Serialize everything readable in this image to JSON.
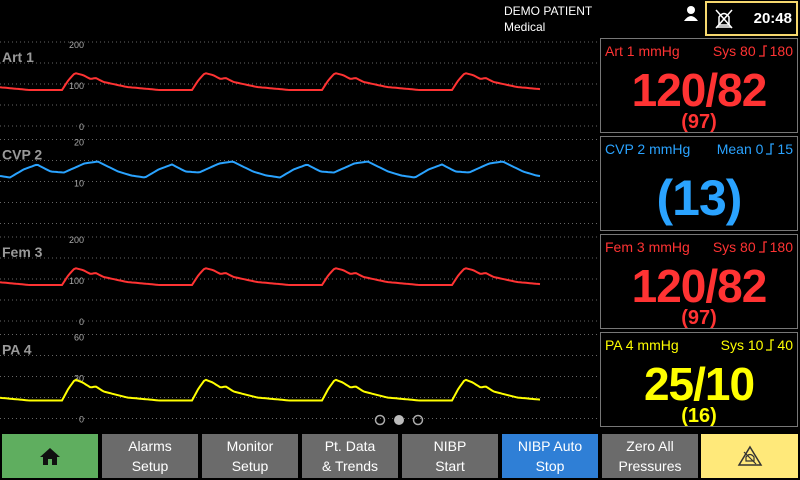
{
  "header": {
    "patient_name": "DEMO PATIENT",
    "unit": "Medical",
    "clock": "20:48"
  },
  "waveforms": [
    {
      "label": "Art 1",
      "scale": [
        "200",
        "100",
        "0"
      ],
      "color": "#ff3333"
    },
    {
      "label": "CVP 2",
      "scale": [
        "20",
        "10"
      ],
      "color": "#2aa3ff"
    },
    {
      "label": "Fem 3",
      "scale": [
        "200",
        "100",
        "0"
      ],
      "color": "#ff3333"
    },
    {
      "label": "PA 4",
      "scale": [
        "60",
        "30",
        "0"
      ],
      "color": "#ffff00"
    }
  ],
  "panels": [
    {
      "label": "Art 1 mmHg",
      "alarm_low": "Sys 80",
      "alarm_high": "180",
      "value": "120/82",
      "mean": "(97)",
      "color": "#ff3333"
    },
    {
      "label": "CVP 2 mmHg",
      "alarm_low": "Mean 0",
      "alarm_high": "15",
      "value": "(13)",
      "color": "#2aa3ff"
    },
    {
      "label": "Fem 3 mmHg",
      "alarm_low": "Sys 80",
      "alarm_high": "180",
      "value": "120/82",
      "mean": "(97)",
      "color": "#ff3333"
    },
    {
      "label": "PA 4 mmHg",
      "alarm_low": "Sys 10",
      "alarm_high": "40",
      "value": "25/10",
      "mean": "(16)",
      "color": "#ffff00"
    }
  ],
  "buttons": [
    {
      "lines": [
        "Alarms",
        "Setup"
      ]
    },
    {
      "lines": [
        "Monitor",
        "Setup"
      ]
    },
    {
      "lines": [
        "Pt. Data",
        "& Trends"
      ]
    },
    {
      "lines": [
        "NIBP",
        "Start"
      ]
    },
    {
      "lines": [
        "NIBP Auto",
        "Stop"
      ]
    },
    {
      "lines": [
        "Zero All",
        "Pressures"
      ]
    }
  ]
}
